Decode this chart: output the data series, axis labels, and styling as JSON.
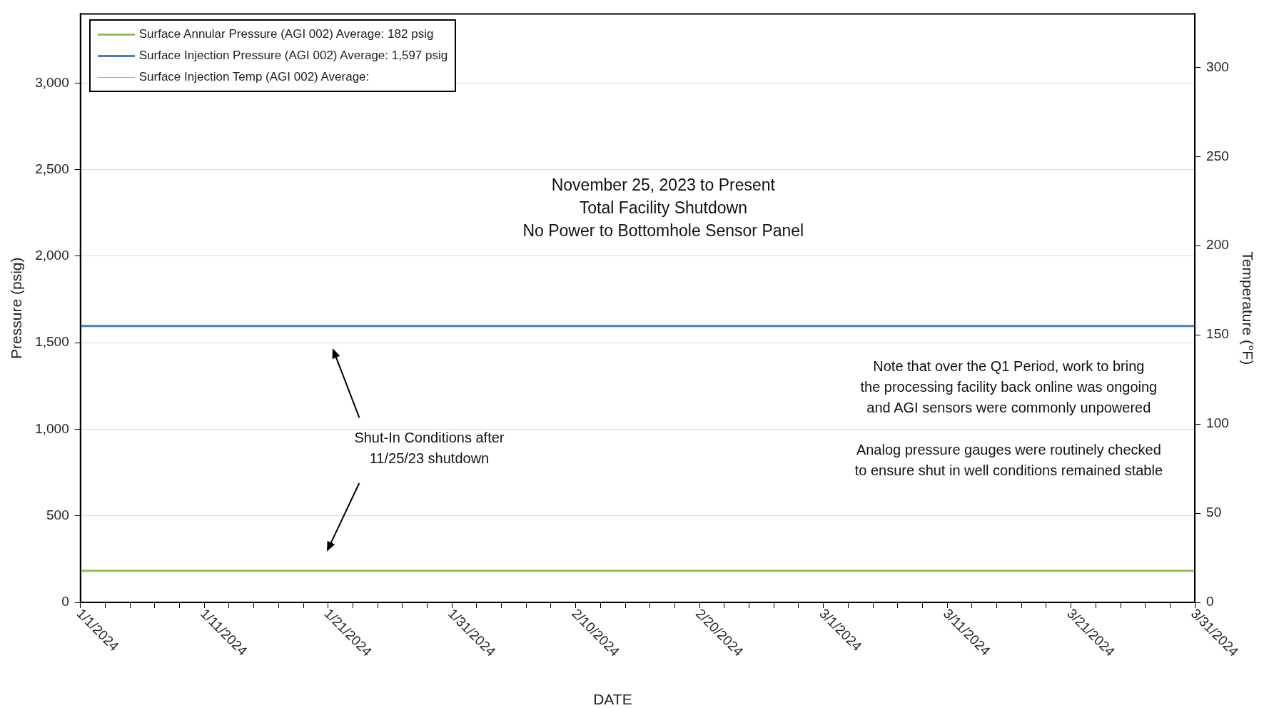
{
  "chart_data": {
    "type": "line",
    "xlabel": "DATE",
    "ylabel": "Pressure (psig)",
    "y2label": "Temperature (°F)",
    "x": [
      "2024-01-01",
      "2024-03-31"
    ],
    "series": [
      {
        "name": "Surface Annular Pressure (AGI 002) Average: 182 psig",
        "color": "#92c050",
        "values": [
          182,
          182
        ]
      },
      {
        "name": "Surface Injection Pressure (AGI 002) Average: 1,597 psig",
        "color": "#4a7ebb",
        "values": [
          1597,
          1597
        ]
      },
      {
        "name": "Surface Injection Temp (AGI 002) Average:",
        "color": "#ff8080",
        "values": [
          null,
          null
        ],
        "axis": "y2"
      }
    ],
    "xlim": [
      "2024-01-01",
      "2024-03-31"
    ],
    "xticks": [
      {
        "value": "2024-01-01",
        "label": "1/1/2024"
      },
      {
        "value": "2024-01-03",
        "label": null
      },
      {
        "value": "2024-01-05",
        "label": null
      },
      {
        "value": "2024-01-07",
        "label": null
      },
      {
        "value": "2024-01-09",
        "label": null
      },
      {
        "value": "2024-01-11",
        "label": "1/11/2024"
      },
      {
        "value": "2024-01-13",
        "label": null
      },
      {
        "value": "2024-01-15",
        "label": null
      },
      {
        "value": "2024-01-17",
        "label": null
      },
      {
        "value": "2024-01-19",
        "label": null
      },
      {
        "value": "2024-01-21",
        "label": "1/21/2024"
      },
      {
        "value": "2024-01-23",
        "label": null
      },
      {
        "value": "2024-01-25",
        "label": null
      },
      {
        "value": "2024-01-27",
        "label": null
      },
      {
        "value": "2024-01-29",
        "label": null
      },
      {
        "value": "2024-01-31",
        "label": "1/31/2024"
      },
      {
        "value": "2024-02-02",
        "label": null
      },
      {
        "value": "2024-02-04",
        "label": null
      },
      {
        "value": "2024-02-06",
        "label": null
      },
      {
        "value": "2024-02-08",
        "label": null
      },
      {
        "value": "2024-02-10",
        "label": "2/10/2024"
      },
      {
        "value": "2024-02-12",
        "label": null
      },
      {
        "value": "2024-02-14",
        "label": null
      },
      {
        "value": "2024-02-16",
        "label": null
      },
      {
        "value": "2024-02-18",
        "label": null
      },
      {
        "value": "2024-02-20",
        "label": "2/20/2024"
      },
      {
        "value": "2024-02-22",
        "label": null
      },
      {
        "value": "2024-02-24",
        "label": null
      },
      {
        "value": "2024-02-26",
        "label": null
      },
      {
        "value": "2024-02-28",
        "label": null
      },
      {
        "value": "2024-03-01",
        "label": "3/1/2024"
      },
      {
        "value": "2024-03-03",
        "label": null
      },
      {
        "value": "2024-03-05",
        "label": null
      },
      {
        "value": "2024-03-07",
        "label": null
      },
      {
        "value": "2024-03-09",
        "label": null
      },
      {
        "value": "2024-03-11",
        "label": "3/11/2024"
      },
      {
        "value": "2024-03-13",
        "label": null
      },
      {
        "value": "2024-03-15",
        "label": null
      },
      {
        "value": "2024-03-17",
        "label": null
      },
      {
        "value": "2024-03-19",
        "label": null
      },
      {
        "value": "2024-03-21",
        "label": "3/21/2024"
      },
      {
        "value": "2024-03-23",
        "label": null
      },
      {
        "value": "2024-03-25",
        "label": null
      },
      {
        "value": "2024-03-27",
        "label": null
      },
      {
        "value": "2024-03-29",
        "label": null
      },
      {
        "value": "2024-03-31",
        "label": "3/31/2024"
      }
    ],
    "ylim": [
      0,
      3400
    ],
    "yticks": [
      0,
      {
        "value": 500,
        "label": "500"
      },
      {
        "value": 1000,
        "label": "1,000"
      },
      {
        "value": 1500,
        "label": "1,500"
      },
      {
        "value": 2000,
        "label": "2,000"
      },
      {
        "value": 2500,
        "label": "2,500"
      },
      {
        "value": 3000,
        "label": "3,000"
      }
    ],
    "y2lim": [
      0,
      330
    ],
    "y2ticks": [
      0,
      50,
      100,
      150,
      200,
      250,
      300
    ],
    "grid": "y",
    "legend": "top left",
    "marker": "none",
    "line_style": "solid",
    "annotations": [
      "November 25, 2023 to Present\nTotal Facility Shutdown\nNo Power to Bottomhole Sensor Panel",
      "Shut-In Conditions after\n11/25/23 shutdown",
      "Note that over the Q1 Period, work to bring\nthe processing facility back online was ongoing\nand AGI sensors were commonly unpowered",
      "Analog pressure gauges were routinely checked\nto ensure shut in well conditions remained stable"
    ]
  }
}
